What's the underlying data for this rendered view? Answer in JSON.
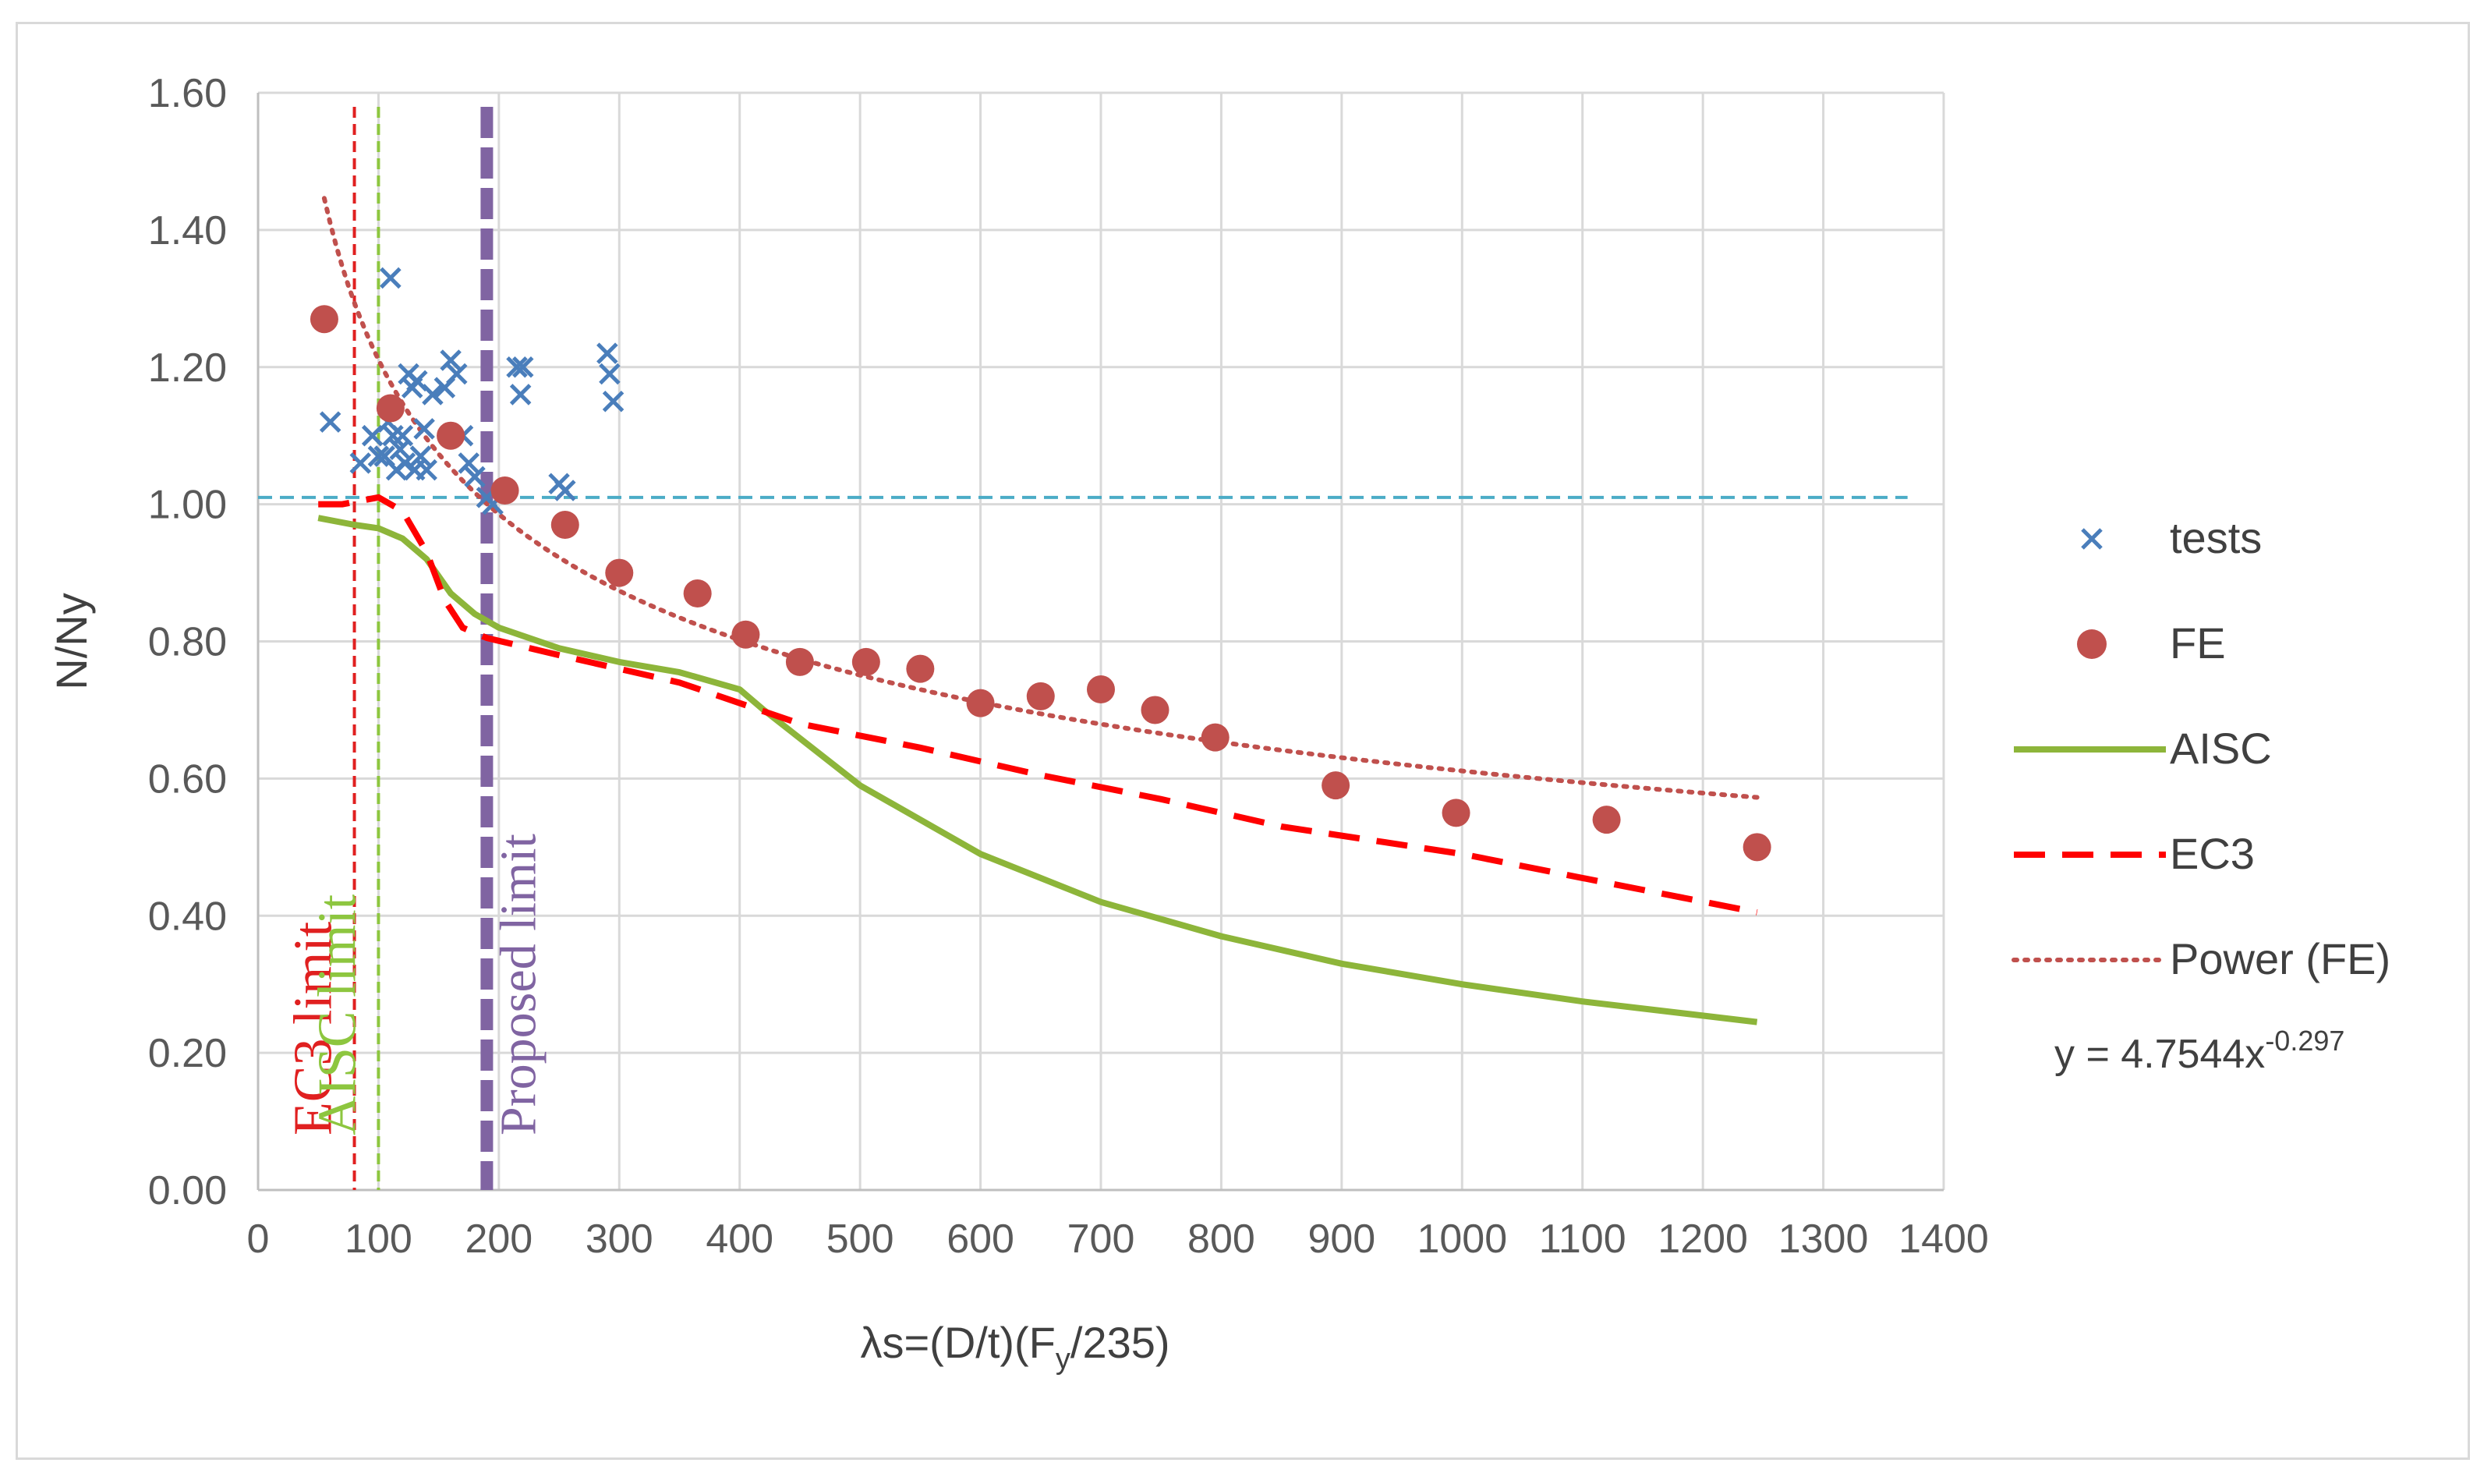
{
  "chart_data": {
    "type": "scatter",
    "title": "",
    "xlabel": "λs=(D/t)(F",
    "xlabel_sub": "y",
    "xlabel_tail": "/235)",
    "ylabel": "N/Ny",
    "xlim": [
      0,
      1400
    ],
    "ylim": [
      0,
      1.6
    ],
    "x_ticks": [
      0,
      100,
      200,
      300,
      400,
      500,
      600,
      700,
      800,
      900,
      1000,
      1100,
      1200,
      1300,
      1400
    ],
    "y_ticks": [
      0,
      0.2,
      0.4,
      0.6,
      0.8,
      1.0,
      1.2,
      1.4,
      1.6
    ],
    "x_tick_labels": [
      "0",
      "100",
      "200",
      "300",
      "400",
      "500",
      "600",
      "700",
      "800",
      "900",
      "1000",
      "1100",
      "1200",
      "1300",
      "1400"
    ],
    "y_tick_labels": [
      "0.00",
      "0.20",
      "0.40",
      "0.60",
      "0.80",
      "1.00",
      "1.20",
      "1.40",
      "1.60"
    ],
    "grid": true,
    "legend_position": "right",
    "reference_line": {
      "y": 1.01,
      "color": "#4bacc6"
    },
    "limits": [
      {
        "name": "EC3 limit",
        "x": 80,
        "color": "#e02020",
        "style": "dashed-thin"
      },
      {
        "name": "AISC limit",
        "x": 100,
        "color": "#8dc63f",
        "style": "dashed-thin"
      },
      {
        "name": "Proposed limit",
        "x": 190,
        "color": "#8064a2",
        "style": "dashed-thick"
      }
    ],
    "series": [
      {
        "name": "tests",
        "kind": "x-marker",
        "color": "#4a7ebb",
        "points": [
          [
            60,
            1.12
          ],
          [
            85,
            1.06
          ],
          [
            95,
            1.1
          ],
          [
            100,
            1.07
          ],
          [
            105,
            1.07
          ],
          [
            108,
            1.12
          ],
          [
            110,
            1.33
          ],
          [
            112,
            1.1
          ],
          [
            115,
            1.05
          ],
          [
            118,
            1.08
          ],
          [
            120,
            1.1
          ],
          [
            122,
            1.06
          ],
          [
            125,
            1.19
          ],
          [
            128,
            1.17
          ],
          [
            130,
            1.05
          ],
          [
            132,
            1.18
          ],
          [
            135,
            1.07
          ],
          [
            138,
            1.11
          ],
          [
            140,
            1.05
          ],
          [
            145,
            1.16
          ],
          [
            155,
            1.17
          ],
          [
            160,
            1.21
          ],
          [
            165,
            1.19
          ],
          [
            170,
            1.1
          ],
          [
            175,
            1.06
          ],
          [
            180,
            1.04
          ],
          [
            190,
            1.01
          ],
          [
            195,
            1.0
          ],
          [
            215,
            1.2
          ],
          [
            218,
            1.16
          ],
          [
            220,
            1.2
          ],
          [
            250,
            1.03
          ],
          [
            255,
            1.02
          ],
          [
            290,
            1.22
          ],
          [
            292,
            1.19
          ],
          [
            295,
            1.15
          ]
        ]
      },
      {
        "name": "FE",
        "kind": "circle",
        "color": "#c0504d",
        "points": [
          [
            55,
            1.27
          ],
          [
            110,
            1.14
          ],
          [
            160,
            1.1
          ],
          [
            205,
            1.02
          ],
          [
            255,
            0.97
          ],
          [
            300,
            0.9
          ],
          [
            365,
            0.87
          ],
          [
            405,
            0.81
          ],
          [
            450,
            0.77
          ],
          [
            505,
            0.77
          ],
          [
            550,
            0.76
          ],
          [
            600,
            0.71
          ],
          [
            650,
            0.72
          ],
          [
            700,
            0.73
          ],
          [
            745,
            0.7
          ],
          [
            795,
            0.66
          ],
          [
            895,
            0.59
          ],
          [
            995,
            0.55
          ],
          [
            1120,
            0.54
          ],
          [
            1245,
            0.5
          ]
        ]
      },
      {
        "name": "AISC",
        "kind": "line",
        "color": "#8db53a",
        "points": [
          [
            50,
            0.98
          ],
          [
            80,
            0.97
          ],
          [
            100,
            0.965
          ],
          [
            120,
            0.95
          ],
          [
            140,
            0.92
          ],
          [
            160,
            0.87
          ],
          [
            180,
            0.84
          ],
          [
            200,
            0.82
          ],
          [
            250,
            0.79
          ],
          [
            300,
            0.77
          ],
          [
            350,
            0.755
          ],
          [
            400,
            0.73
          ],
          [
            420,
            0.7
          ],
          [
            500,
            0.59
          ],
          [
            600,
            0.49
          ],
          [
            700,
            0.42
          ],
          [
            800,
            0.37
          ],
          [
            900,
            0.33
          ],
          [
            1000,
            0.3
          ],
          [
            1100,
            0.275
          ],
          [
            1245,
            0.245
          ]
        ]
      },
      {
        "name": "EC3",
        "kind": "dashed-line",
        "color": "#ff0000",
        "points": [
          [
            50,
            1.0
          ],
          [
            70,
            1.0
          ],
          [
            100,
            1.01
          ],
          [
            120,
            0.99
          ],
          [
            140,
            0.93
          ],
          [
            155,
            0.86
          ],
          [
            170,
            0.82
          ],
          [
            190,
            0.805
          ],
          [
            250,
            0.78
          ],
          [
            350,
            0.74
          ],
          [
            450,
            0.68
          ],
          [
            550,
            0.645
          ],
          [
            650,
            0.605
          ],
          [
            750,
            0.57
          ],
          [
            850,
            0.53
          ],
          [
            1000,
            0.49
          ],
          [
            1100,
            0.455
          ],
          [
            1245,
            0.405
          ]
        ]
      },
      {
        "name": "Power (FE)",
        "kind": "dotted-line",
        "color": "#c0504d",
        "equation": {
          "coef": 4.7544,
          "exp": -0.297
        }
      }
    ],
    "trendline_label": "y = 4.7544x",
    "trendline_exponent": "-0.297"
  }
}
